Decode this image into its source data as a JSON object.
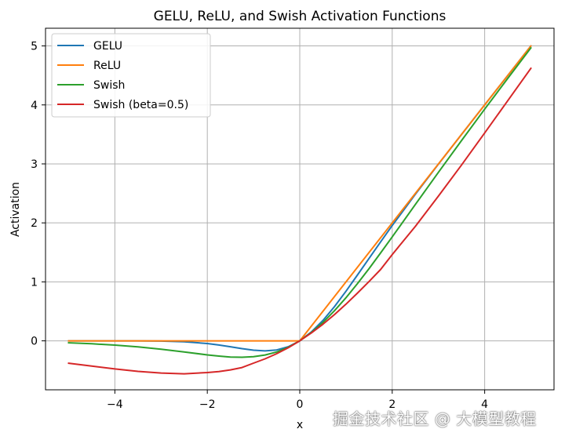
{
  "chart_data": {
    "type": "line",
    "title": "GELU, ReLU, and Swish Activation Functions",
    "xlabel": "x",
    "ylabel": "Activation",
    "xlim": [
      -5.5,
      5.5
    ],
    "ylim": [
      -0.83,
      5.3
    ],
    "xticks": [
      -4,
      -2,
      0,
      2,
      4
    ],
    "yticks": [
      0,
      1,
      2,
      3,
      4,
      5
    ],
    "grid": true,
    "legend_position": "top-left",
    "x_samples_range": [
      -5,
      5
    ],
    "series": [
      {
        "name": "GELU",
        "color": "#1f77b4",
        "x": [
          -5,
          -4.5,
          -4,
          -3.5,
          -3,
          -2.5,
          -2,
          -1.75,
          -1.5,
          -1.25,
          -1,
          -0.75,
          -0.5,
          -0.25,
          0,
          0.25,
          0.5,
          0.75,
          1,
          1.25,
          1.5,
          1.75,
          2,
          2.5,
          3,
          3.5,
          4,
          4.5,
          5
        ],
        "y": [
          0.0,
          0.0,
          -0.0001,
          -0.0008,
          -0.004,
          -0.0155,
          -0.0455,
          -0.0702,
          -0.1002,
          -0.1321,
          -0.1587,
          -0.17,
          -0.1543,
          -0.1003,
          0.0,
          0.1497,
          0.3457,
          0.58,
          0.8413,
          1.1179,
          1.3998,
          1.6798,
          1.9545,
          2.4845,
          2.996,
          3.4992,
          3.9999,
          4.5,
          5.0
        ]
      },
      {
        "name": "ReLU",
        "color": "#ff7f0e",
        "x": [
          -5,
          0,
          5
        ],
        "y": [
          0,
          0,
          5
        ]
      },
      {
        "name": "Swish",
        "color": "#2ca02c",
        "x": [
          -5,
          -4.5,
          -4,
          -3.5,
          -3,
          -2.5,
          -2,
          -1.75,
          -1.5,
          -1.25,
          -1,
          -0.75,
          -0.5,
          -0.25,
          0,
          0.25,
          0.5,
          0.75,
          1,
          1.25,
          1.5,
          1.75,
          2,
          2.5,
          3,
          3.5,
          4,
          4.5,
          5
        ],
        "y": [
          -0.0335,
          -0.0494,
          -0.0719,
          -0.1033,
          -0.1423,
          -0.1879,
          -0.2384,
          -0.2583,
          -0.2736,
          -0.2783,
          -0.2689,
          -0.24,
          -0.1888,
          -0.1097,
          0.0,
          0.1403,
          0.3112,
          0.51,
          0.7311,
          0.9717,
          1.2264,
          1.4917,
          1.7616,
          2.3121,
          2.8577,
          3.3968,
          3.9281,
          4.4502,
          4.9665
        ]
      },
      {
        "name": "Swish (beta=0.5)",
        "color": "#d62728",
        "x": [
          -5,
          -4.5,
          -4,
          -3.5,
          -3,
          -2.5,
          -2,
          -1.75,
          -1.5,
          -1.25,
          -1,
          -0.75,
          -0.5,
          -0.25,
          0,
          0.25,
          0.5,
          0.75,
          1,
          1.25,
          1.5,
          1.75,
          2,
          2.5,
          3,
          3.5,
          4,
          4.5,
          5
        ],
        "y": [
          -0.3796,
          -0.4271,
          -0.4768,
          -0.5171,
          -0.5454,
          -0.5585,
          -0.5379,
          -0.5202,
          -0.492,
          -0.4519,
          -0.3775,
          -0.305,
          -0.2188,
          -0.1172,
          0.0,
          0.1328,
          0.2812,
          0.445,
          0.6225,
          0.8111,
          1.008,
          1.2106,
          1.4621,
          1.9415,
          2.4546,
          2.9829,
          3.5232,
          4.0729,
          4.6204
        ]
      }
    ]
  },
  "watermark": "掘金技术社区 @ 大模型教程"
}
